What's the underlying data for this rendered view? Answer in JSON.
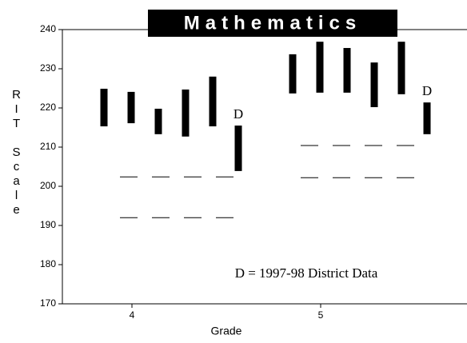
{
  "chart_data": {
    "type": "range",
    "title": "Mathematics",
    "x_label": "Grade",
    "y_label": "RIT Scale",
    "annotation": "D = 1997-98 District Data",
    "district_marker": "D",
    "color": "#000000",
    "ylim": [
      170,
      240
    ],
    "yticks": [
      170,
      180,
      190,
      200,
      210,
      220,
      230,
      240
    ],
    "groups": [
      {
        "category": "4",
        "ranges": [
          [
            215.3,
            224.9
          ],
          [
            216.1,
            224.1
          ],
          [
            213.3,
            219.8
          ],
          [
            212.7,
            224.7
          ],
          [
            215.3,
            228
          ]
        ],
        "district": [
          203.9,
          215.5
        ],
        "references": [
          202.4,
          192
        ]
      },
      {
        "category": "5",
        "ranges": [
          [
            223.7,
            233.7
          ],
          [
            223.9,
            236.9
          ],
          [
            223.9,
            235.3
          ],
          [
            220.2,
            231.6
          ],
          [
            223.5,
            236.9
          ]
        ],
        "district": [
          213.3,
          221.4
        ],
        "references": [
          210.4,
          202.2
        ]
      }
    ]
  }
}
